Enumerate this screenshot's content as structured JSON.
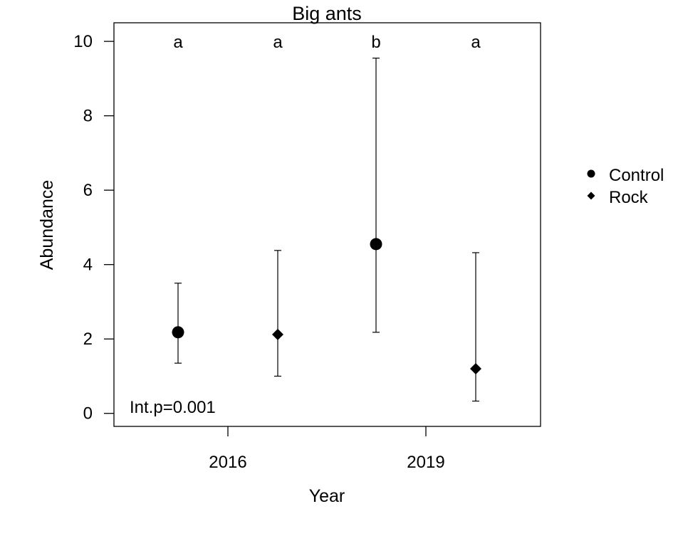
{
  "chart_data": {
    "type": "scatter",
    "title": "Big ants",
    "xlabel": "Year",
    "ylabel": "Abundance",
    "categories": [
      "2016",
      "2019"
    ],
    "ylim": [
      -0.35,
      10.5
    ],
    "yticks": [
      0,
      2,
      4,
      6,
      8,
      10
    ],
    "grid": false,
    "legend_position": "right",
    "annotation": "Int.p=0.001",
    "series": [
      {
        "name": "Control",
        "marker": "circle",
        "points": [
          {
            "x": "2016",
            "y": 2.18,
            "lower": 1.35,
            "upper": 3.5,
            "letter": "a"
          },
          {
            "x": "2019",
            "y": 4.55,
            "lower": 2.18,
            "upper": 9.55,
            "letter": "b"
          }
        ]
      },
      {
        "name": "Rock",
        "marker": "diamond",
        "points": [
          {
            "x": "2016",
            "y": 2.12,
            "lower": 1.0,
            "upper": 4.38,
            "letter": "a"
          },
          {
            "x": "2019",
            "y": 1.2,
            "lower": 0.33,
            "upper": 4.32,
            "letter": "a"
          }
        ]
      }
    ]
  }
}
